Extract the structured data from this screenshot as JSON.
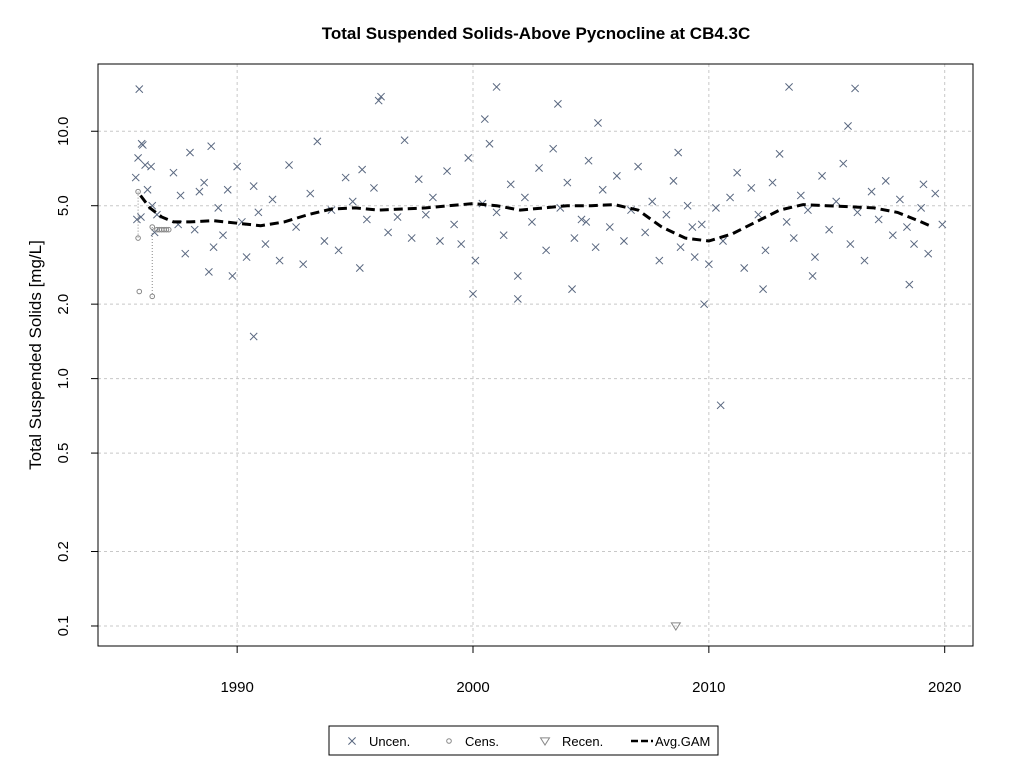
{
  "chart_data": {
    "type": "scatter",
    "title": "Total Suspended Solids-Above Pycnocline at CB4.3C",
    "xlabel": "",
    "ylabel": "Total Suspended Solids [mg/L]",
    "y_scale": "log",
    "xlim": [
      1984.1,
      2021.2
    ],
    "ylim": [
      0.083,
      18.7
    ],
    "x_ticks": [
      1990,
      2000,
      2010,
      2020
    ],
    "y_ticks": [
      0.1,
      0.2,
      0.5,
      1.0,
      2.0,
      5.0,
      10.0
    ],
    "y_tick_labels": [
      "0.1",
      "0.2",
      "0.5",
      "1.0",
      "2.0",
      "5.0",
      "10.0"
    ],
    "grid": true,
    "legend_position": "bottom-center",
    "colors": {
      "uncensored": "#5a6880",
      "censored": "#888888",
      "recensored": "#888888",
      "gam": "#000000",
      "grid": "#c8c8c8"
    },
    "legend": [
      {
        "key": "uncen",
        "label": "Uncen.",
        "symbol": "x-mark"
      },
      {
        "key": "cens",
        "label": "Cens.",
        "symbol": "circle"
      },
      {
        "key": "recen",
        "label": "Recen.",
        "symbol": "triangle-down"
      },
      {
        "key": "gam",
        "label": "Avg.GAM",
        "symbol": "dashed-line"
      }
    ],
    "series": [
      {
        "name": "Uncen.",
        "style": "x-mark",
        "x": [
          1985.7,
          1985.75,
          1985.8,
          1985.85,
          1985.92,
          1986.0,
          1986.2,
          1986.35,
          1986.4,
          1986.5,
          1986.6,
          1987.3,
          1987.5,
          1987.6,
          1987.8,
          1988.0,
          1988.2,
          1988.4,
          1988.6,
          1988.8,
          1989.0,
          1989.2,
          1989.4,
          1989.6,
          1989.8,
          1990.0,
          1990.2,
          1990.4,
          1990.7,
          1990.9,
          1991.2,
          1991.5,
          1991.8,
          1992.2,
          1992.5,
          1992.8,
          1993.1,
          1993.4,
          1993.7,
          1994.0,
          1994.3,
          1994.6,
          1994.9,
          1995.2,
          1995.5,
          1995.8,
          1996.1,
          1996.4,
          1996.8,
          1997.1,
          1997.4,
          1997.7,
          1998.0,
          1998.3,
          1998.6,
          1998.9,
          1999.2,
          1999.5,
          1999.8,
          2000.1,
          2000.4,
          2000.7,
          2001.0,
          2001.3,
          2001.6,
          2001.9,
          2002.2,
          2002.5,
          2002.8,
          2003.1,
          2003.4,
          2003.7,
          2004.0,
          2004.3,
          2004.6,
          2004.9,
          2005.2,
          2005.5,
          2005.8,
          2006.1,
          2006.4,
          2006.7,
          2007.0,
          2007.3,
          2007.6,
          2007.9,
          2008.2,
          2008.5,
          2008.8,
          2009.1,
          2009.4,
          2009.7,
          2010.0,
          2010.3,
          2010.6,
          2010.9,
          2011.2,
          2011.5,
          2011.8,
          2012.1,
          2012.4,
          2012.7,
          2013.0,
          2013.3,
          2013.6,
          2013.9,
          2014.2,
          2014.5,
          2014.8,
          2015.1,
          2015.4,
          2015.7,
          2016.0,
          2016.3,
          2016.6,
          2016.9,
          2017.2,
          2017.5,
          2017.8,
          2018.1,
          2018.4,
          2018.7,
          2019.0,
          2019.3,
          2019.6,
          2019.9,
          1986.1,
          1996.0,
          2001.0,
          2003.6,
          2005.3,
          2008.7,
          2013.4,
          2016.2,
          1990.7,
          2000.0,
          2001.9,
          2004.2,
          2009.8,
          2010.5,
          2012.3,
          2014.4,
          2018.5,
          1985.95,
          1988.9,
          1995.3,
          2000.5,
          2004.8,
          2009.3,
          2015.9,
          2019.1
        ],
        "y": [
          6.5,
          4.4,
          7.8,
          14.8,
          4.5,
          8.8,
          5.8,
          7.2,
          5.0,
          3.9,
          4.6,
          6.8,
          4.2,
          5.5,
          3.2,
          8.2,
          4.0,
          5.7,
          6.2,
          2.7,
          3.4,
          4.9,
          3.8,
          5.8,
          2.6,
          7.2,
          4.3,
          3.1,
          6.0,
          4.7,
          3.5,
          5.3,
          3.0,
          7.3,
          4.1,
          2.9,
          5.6,
          9.1,
          3.6,
          4.8,
          3.3,
          6.5,
          5.2,
          2.8,
          4.4,
          5.9,
          13.8,
          3.9,
          4.5,
          9.2,
          3.7,
          6.4,
          4.6,
          5.4,
          3.6,
          6.9,
          4.2,
          3.5,
          7.8,
          3.0,
          5.1,
          8.9,
          4.7,
          3.8,
          6.1,
          2.6,
          5.4,
          4.3,
          7.1,
          3.3,
          8.5,
          4.9,
          6.2,
          3.7,
          4.4,
          7.6,
          3.4,
          5.8,
          4.1,
          6.6,
          3.6,
          4.8,
          7.2,
          3.9,
          5.2,
          3.0,
          4.6,
          6.3,
          3.4,
          5.0,
          3.1,
          4.2,
          2.9,
          4.9,
          3.6,
          5.4,
          6.8,
          2.8,
          5.9,
          4.6,
          3.3,
          6.2,
          8.1,
          4.3,
          3.7,
          5.5,
          4.8,
          3.1,
          6.6,
          4.0,
          5.2,
          7.4,
          3.5,
          4.7,
          3.0,
          5.7,
          4.4,
          6.3,
          3.8,
          5.3,
          4.1,
          3.5,
          4.9,
          3.2,
          5.6,
          4.2,
          7.3,
          13.3,
          15.1,
          12.9,
          10.8,
          8.2,
          15.1,
          14.9,
          1.48,
          2.2,
          2.1,
          2.3,
          2.0,
          0.78,
          2.3,
          2.6,
          2.4,
          8.9,
          8.7,
          7.0,
          11.2,
          4.3,
          4.1,
          10.5,
          6.1
        ]
      },
      {
        "name": "Cens.",
        "style": "circle",
        "x": [
          1985.8,
          1985.8,
          1985.85,
          1986.4,
          1986.4,
          1986.6,
          1986.7,
          1986.8,
          1986.9,
          1987.0,
          1987.1
        ],
        "y": [
          5.7,
          3.7,
          2.25,
          4.1,
          2.15,
          4.0,
          4.0,
          4.0,
          4.0,
          4.0,
          4.0
        ]
      },
      {
        "name": "Recen.",
        "style": "triangle-down",
        "x": [
          2008.6
        ],
        "y": [
          0.1
        ]
      },
      {
        "name": "Avg.GAM",
        "style": "dashed-line",
        "x": [
          1985.9,
          1986.3,
          1986.8,
          1987.3,
          1988.0,
          1989.0,
          1990.0,
          1991.0,
          1992.0,
          1993.0,
          1994.0,
          1995.0,
          1996.0,
          1997.0,
          1998.0,
          1999.0,
          2000.0,
          2001.0,
          2002.0,
          2003.0,
          2004.0,
          2005.0,
          2006.0,
          2007.0,
          2008.0,
          2009.0,
          2010.0,
          2011.0,
          2012.0,
          2013.0,
          2014.0,
          2015.0,
          2016.0,
          2017.0,
          2018.0,
          2019.0,
          2019.5
        ],
        "y": [
          5.5,
          4.9,
          4.5,
          4.3,
          4.3,
          4.35,
          4.25,
          4.15,
          4.3,
          4.6,
          4.85,
          4.9,
          4.8,
          4.85,
          4.9,
          5.0,
          5.1,
          5.0,
          4.8,
          4.9,
          5.0,
          5.0,
          5.05,
          4.8,
          4.1,
          3.7,
          3.6,
          3.85,
          4.3,
          4.8,
          5.05,
          5.0,
          4.95,
          4.9,
          4.7,
          4.3,
          4.1
        ]
      }
    ]
  }
}
